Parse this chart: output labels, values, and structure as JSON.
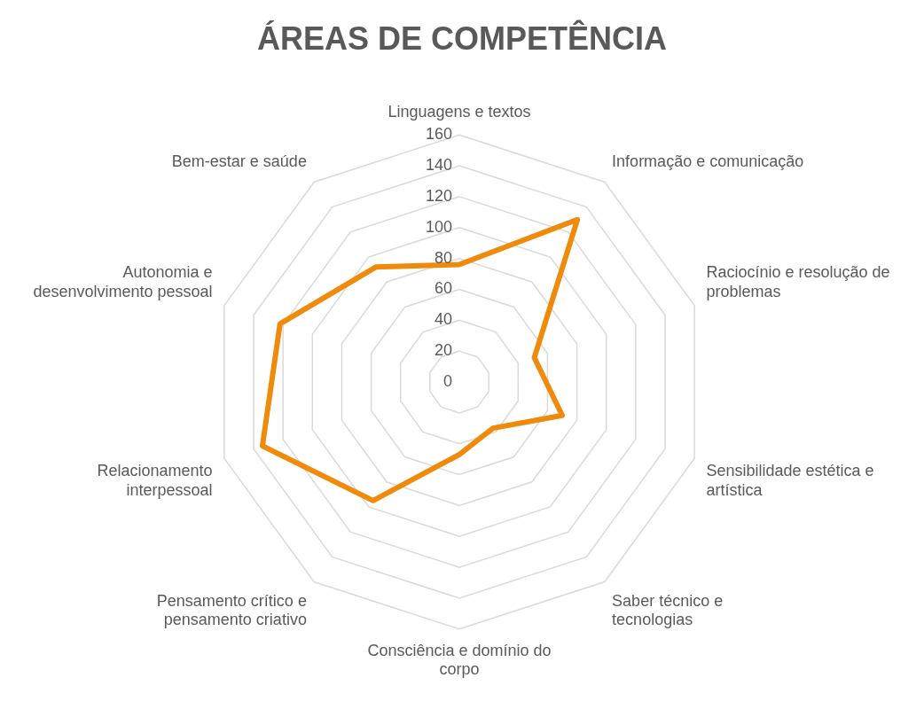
{
  "chart_data": {
    "type": "radar",
    "title": "ÁREAS DE COMPETÊNCIA",
    "categories": [
      "Linguagens e textos",
      "Informação e comunicação",
      "Raciocínio e resolução de problemas",
      "Sensibilidade estética e artística",
      "Saber técnico e tecnologias",
      "Consciência e domínio do corpo",
      "Pensamento crítico e pensamento criativo",
      "Relacionamento interpessoal",
      "Autonomia e desenvolvimento pessoal",
      "Bem-estar e saúde"
    ],
    "series": [
      {
        "color": "#f08a0b",
        "values": [
          76,
          130,
          51,
          70,
          37,
          47,
          95,
          134,
          122,
          92
        ]
      }
    ],
    "ylim": [
      0,
      160
    ],
    "yticks": [
      0,
      20,
      40,
      60,
      80,
      100,
      120,
      140,
      160
    ],
    "grid": true,
    "marker": "none"
  }
}
